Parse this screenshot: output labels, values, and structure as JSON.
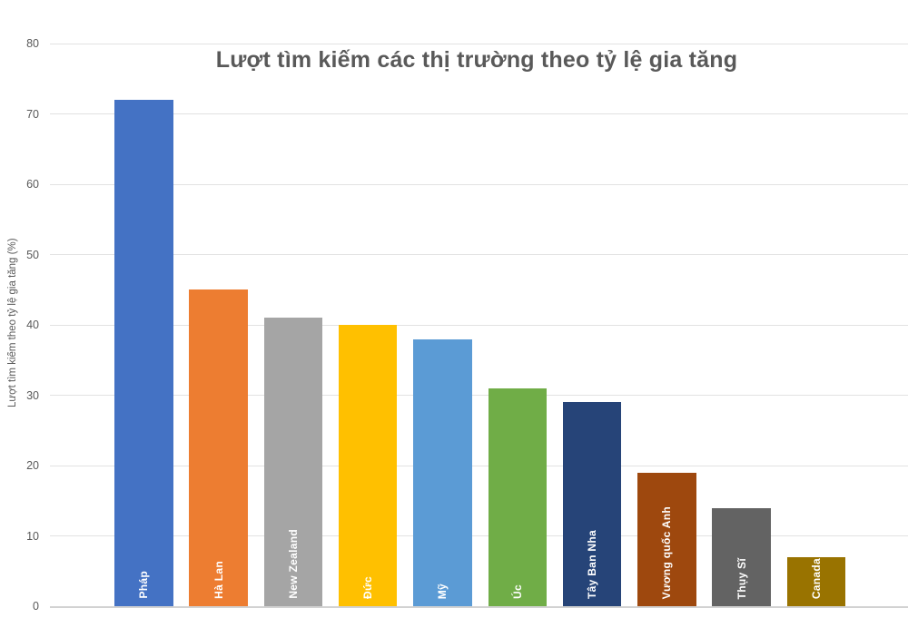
{
  "chart_data": {
    "type": "bar",
    "title": "Lượt tìm kiếm các thị trường theo tỷ lệ gia tăng",
    "xlabel": "",
    "ylabel": "Lượt tìm kiếm theo tỷ lệ gia tăng (%)",
    "categories": [
      "Pháp",
      "Hà Lan",
      "New Zealand",
      "Đức",
      "Mỹ",
      "Úc",
      "Tây Ban Nha",
      "Vương quốc Anh",
      "Thụy Sĩ",
      "Canada"
    ],
    "values": [
      72,
      45,
      41,
      40,
      38,
      31,
      29,
      19,
      14,
      7
    ],
    "bar_colors": [
      "#4472C4",
      "#ED7D31",
      "#A5A5A5",
      "#FFC000",
      "#5B9BD5",
      "#70AD47",
      "#264478",
      "#9E480E",
      "#636363",
      "#997300"
    ],
    "ylim": [
      0,
      80
    ],
    "yticks": [
      0,
      10,
      20,
      30,
      40,
      50,
      60,
      70,
      80
    ],
    "grid": "horizontal",
    "legend": "none",
    "colors": {
      "title_text": "#595959",
      "axis_text": "#595959",
      "bar_label_text": "#FFFFFF",
      "gridline": "#E2E2E2",
      "axis_line": "#D2D2D2",
      "background": "#FFFFFF"
    }
  }
}
